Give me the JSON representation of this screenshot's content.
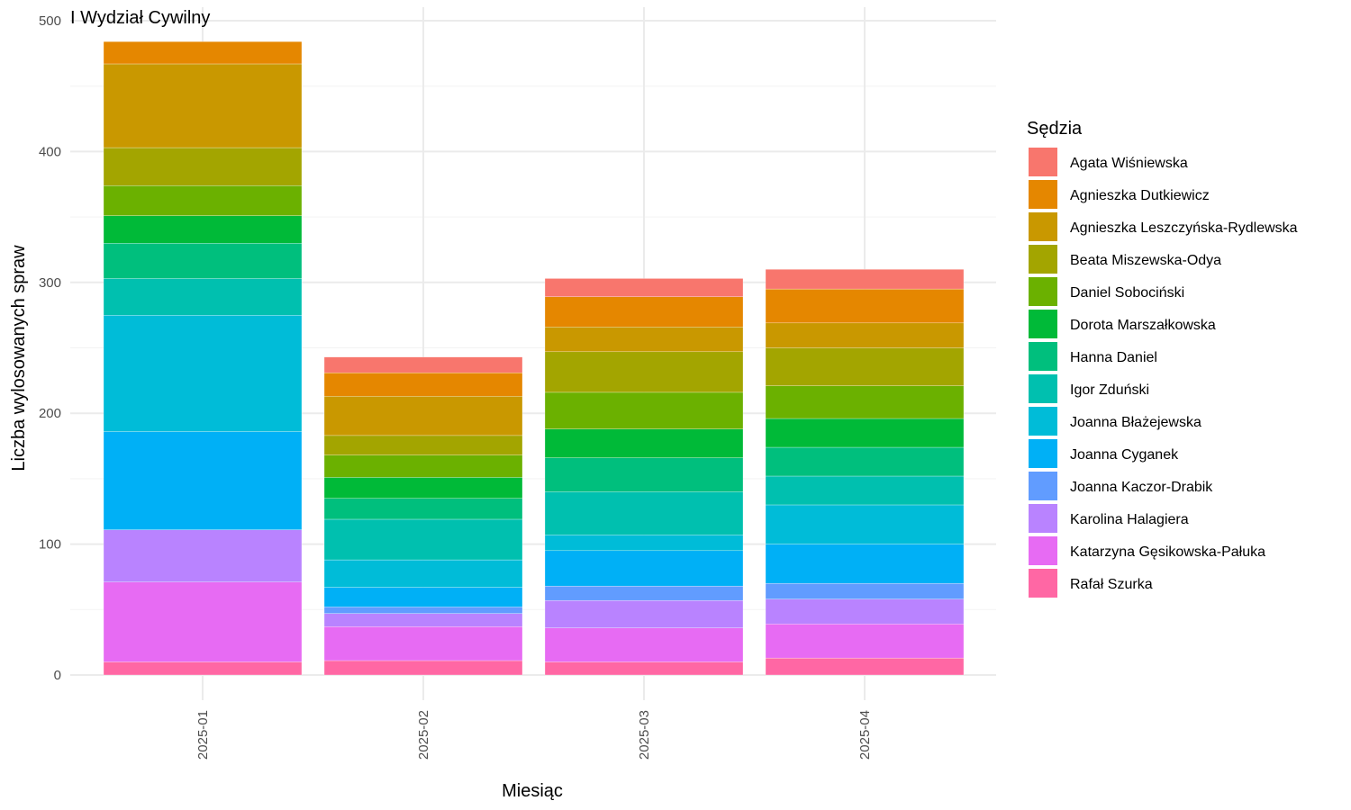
{
  "chart_data": {
    "type": "bar",
    "stacked": true,
    "title": "I Wydział Cywilny",
    "xlabel": "Miesiąc",
    "ylabel": "Liczba wylosowanych spraw",
    "ylim": [
      0,
      500
    ],
    "yticks": [
      0,
      100,
      200,
      300,
      400,
      500
    ],
    "grid": true,
    "legend_title": "Sędzia",
    "legend_position": "right",
    "categories": [
      "2025-01",
      "2025-02",
      "2025-03",
      "2025-04"
    ],
    "series": [
      {
        "name": "Agata Wiśniewska",
        "color": "#F8766D",
        "values": [
          0,
          12,
          14,
          15
        ]
      },
      {
        "name": "Agnieszka Dutkiewicz",
        "color": "#E58700",
        "values": [
          17,
          18,
          23,
          26
        ]
      },
      {
        "name": "Agnieszka Leszczyńska-Rydlewska",
        "color": "#C99800",
        "values": [
          64,
          30,
          19,
          19
        ]
      },
      {
        "name": "Beata Miszewska-Odya",
        "color": "#A3A500",
        "values": [
          29,
          15,
          31,
          29
        ]
      },
      {
        "name": "Daniel Sobociński",
        "color": "#6BB100",
        "values": [
          23,
          17,
          28,
          25
        ]
      },
      {
        "name": "Dorota Marszałkowska",
        "color": "#00BA38",
        "values": [
          21,
          16,
          22,
          22
        ]
      },
      {
        "name": "Hanna Daniel",
        "color": "#00BF7D",
        "values": [
          27,
          16,
          26,
          22
        ]
      },
      {
        "name": "Igor Zduński",
        "color": "#00C0AF",
        "values": [
          28,
          31,
          33,
          22
        ]
      },
      {
        "name": "Joanna Błażejewska",
        "color": "#00BCD8",
        "values": [
          89,
          21,
          12,
          30
        ]
      },
      {
        "name": "Joanna Cyganek",
        "color": "#00B0F6",
        "values": [
          75,
          15,
          27,
          30
        ]
      },
      {
        "name": "Joanna Kaczor-Drabik",
        "color": "#619CFF",
        "values": [
          0,
          5,
          11,
          12
        ]
      },
      {
        "name": "Karolina Halagiera",
        "color": "#B983FF",
        "values": [
          40,
          10,
          21,
          19
        ]
      },
      {
        "name": "Katarzyna Gęsikowska-Pałuka",
        "color": "#E76BF3",
        "values": [
          61,
          26,
          26,
          26
        ]
      },
      {
        "name": "Rafał Szurka",
        "color": "#FF67A4",
        "values": [
          10,
          11,
          10,
          13
        ]
      }
    ]
  }
}
